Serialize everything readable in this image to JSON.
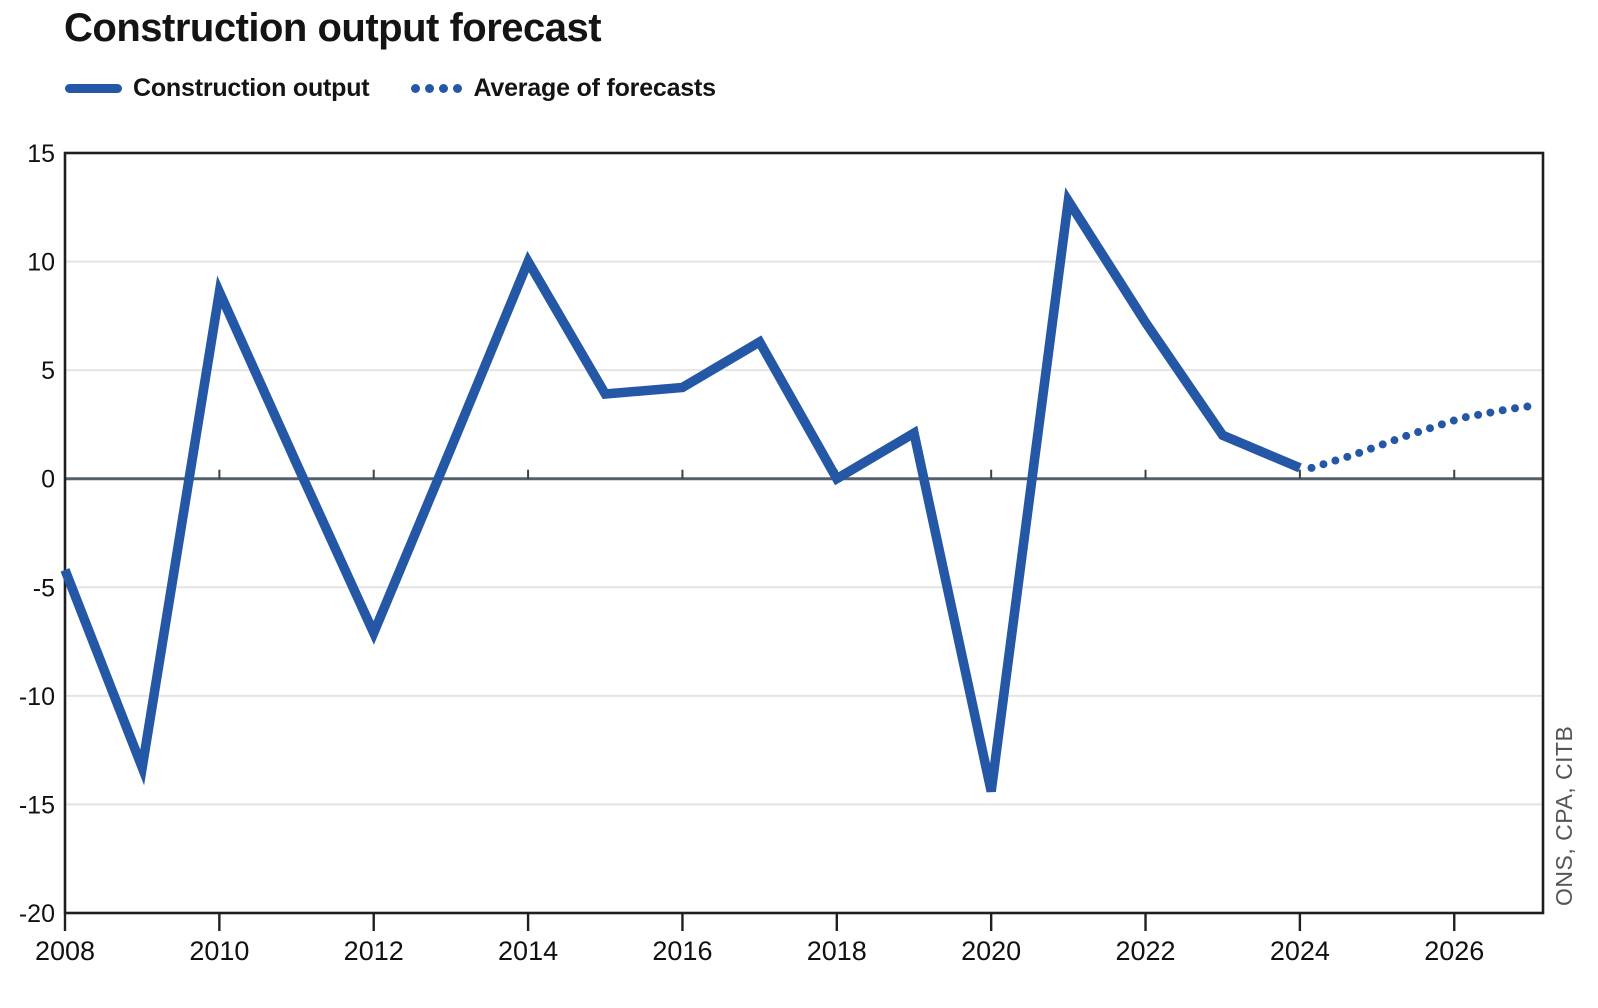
{
  "header": {
    "title": "Construction output forecast"
  },
  "legend": {
    "items": [
      {
        "label": "Construction output",
        "style": "solid"
      },
      {
        "label": "Average of forecasts",
        "style": "dotted"
      }
    ]
  },
  "source_label": "ONS, CPA, CITB",
  "colors": {
    "line_blue": "#2457A5",
    "grid": "#e4e4e4",
    "zero_line": "#55606b",
    "axis_border": "#1f1f1f",
    "tick": "#1f1f1f",
    "label_text": "#111111",
    "source_text": "#555555"
  },
  "chart_data": {
    "type": "line",
    "title": "Construction output forecast",
    "xlabel": "",
    "ylabel": "",
    "xlim": [
      2008,
      2027.15
    ],
    "ylim": [
      -20,
      15
    ],
    "yticks": [
      15,
      10,
      5,
      0,
      -5,
      -10,
      -15,
      -20
    ],
    "xticks": [
      2008,
      2010,
      2012,
      2014,
      2016,
      2018,
      2020,
      2022,
      2024,
      2026
    ],
    "grid": "horizontal",
    "zero_line": true,
    "legend_position": "top-left",
    "source": "ONS, CPA, CITB",
    "series": [
      {
        "name": "Construction output",
        "line_style": "solid",
        "x": [
          2008,
          2009,
          2010,
          2011,
          2012,
          2013,
          2014,
          2015,
          2016,
          2017,
          2018,
          2019,
          2020,
          2021,
          2022,
          2023,
          2024
        ],
        "values": [
          -4.2,
          -13.3,
          8.6,
          0.7,
          -7.1,
          1.4,
          10.0,
          3.9,
          4.2,
          6.3,
          0.0,
          2.1,
          -14.4,
          12.8,
          7.2,
          2.0,
          0.5
        ]
      },
      {
        "name": "Average of forecasts",
        "line_style": "dotted",
        "x": [
          2024.15,
          2024.7,
          2025.4,
          2026.1,
          2026.7,
          2027.1
        ],
        "values": [
          0.5,
          1.1,
          2.0,
          2.8,
          3.2,
          3.4
        ]
      }
    ]
  }
}
